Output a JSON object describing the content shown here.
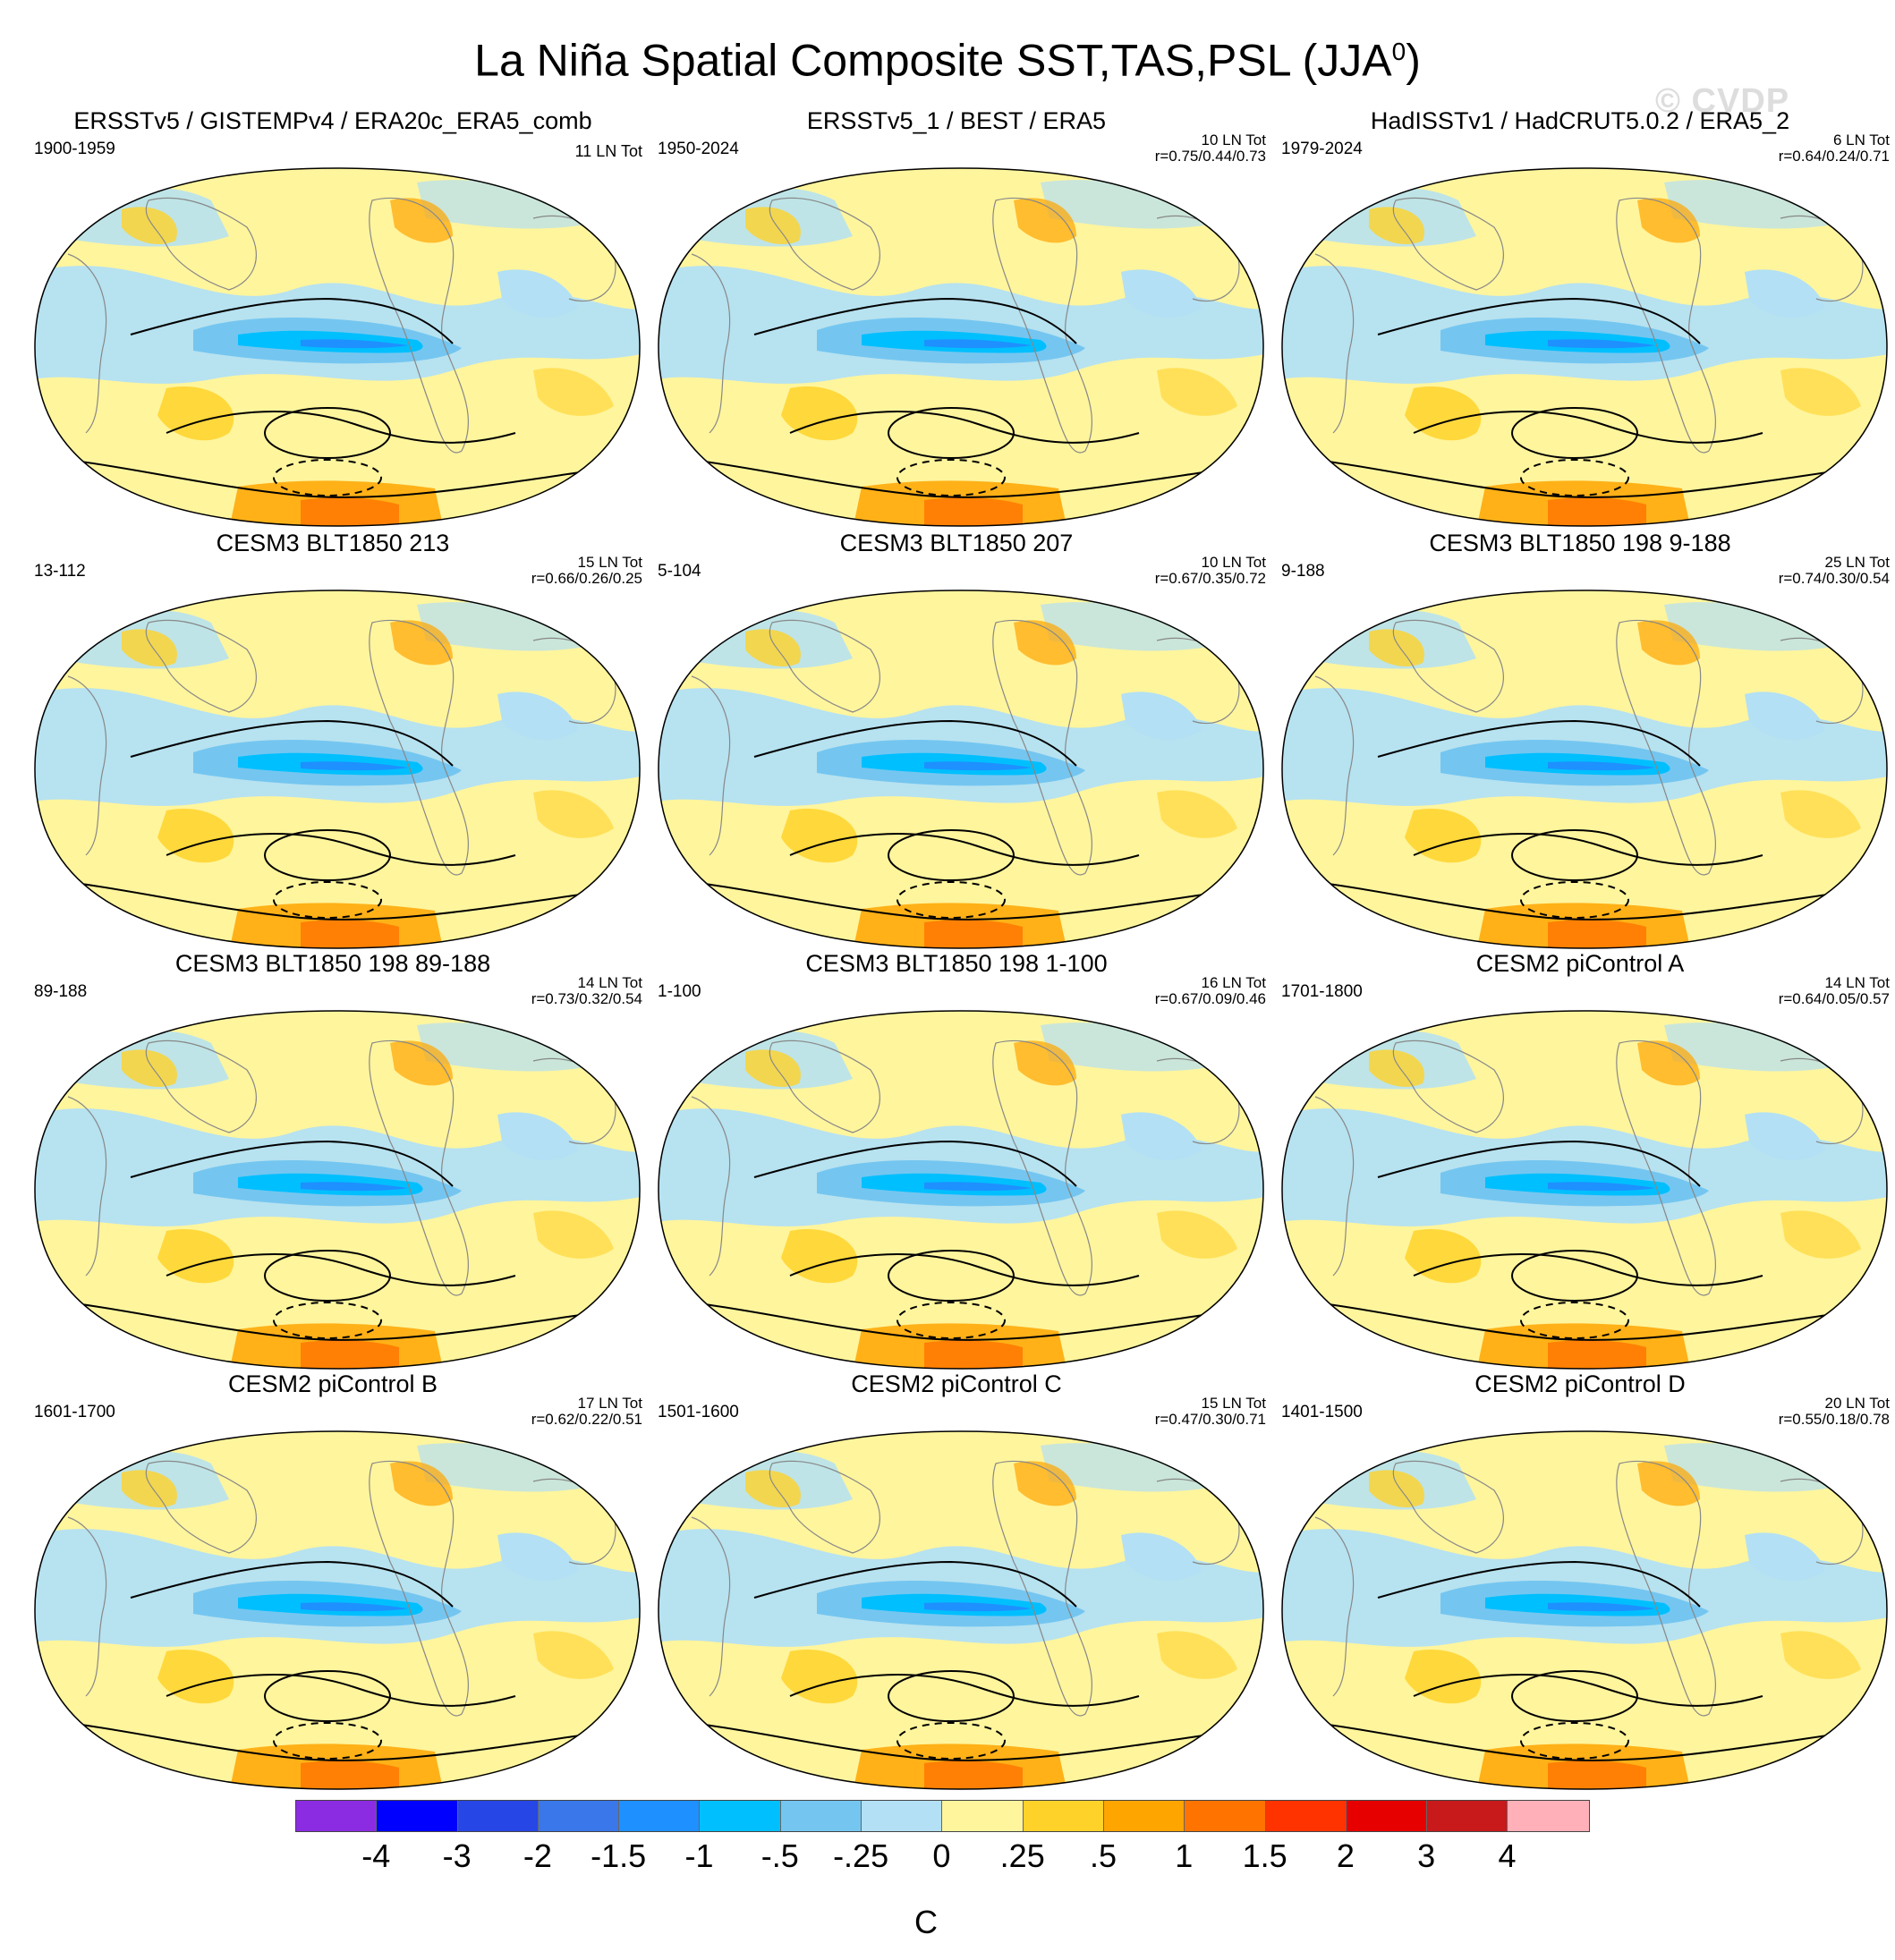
{
  "header": {
    "title": "La Niña Spatial Composite SST,TAS,PSL (JJA",
    "title_sup": "0",
    "title_close": ")",
    "watermark": "© CVDP"
  },
  "panels": [
    {
      "title": "ERSSTv5 / GISTEMPv4 / ERA20c_ERA5_comb",
      "period": "1900-1959",
      "events": "11 LN Tot",
      "corr": ""
    },
    {
      "title": "ERSSTv5_1 / BEST / ERA5",
      "period": "1950-2024",
      "events": "10 LN Tot",
      "corr": "r=0.75/0.44/0.73"
    },
    {
      "title": "HadISSTv1 / HadCRUT5.0.2 / ERA5_2",
      "period": "1979-2024",
      "events": "6 LN Tot",
      "corr": "r=0.64/0.24/0.71"
    },
    {
      "title": "CESM3 BLT1850 213",
      "period": "13-112",
      "events": "15 LN Tot",
      "corr": "r=0.66/0.26/0.25"
    },
    {
      "title": "CESM3 BLT1850 207",
      "period": "5-104",
      "events": "10 LN Tot",
      "corr": "r=0.67/0.35/0.72"
    },
    {
      "title": "CESM3 BLT1850 198 9-188",
      "period": "9-188",
      "events": "25 LN Tot",
      "corr": "r=0.74/0.30/0.54"
    },
    {
      "title": "CESM3 BLT1850 198 89-188",
      "period": "89-188",
      "events": "14 LN Tot",
      "corr": "r=0.73/0.32/0.54"
    },
    {
      "title": "CESM3 BLT1850 198 1-100",
      "period": "1-100",
      "events": "16 LN Tot",
      "corr": "r=0.67/0.09/0.46"
    },
    {
      "title": "CESM2 piControl A",
      "period": "1701-1800",
      "events": "14 LN Tot",
      "corr": "r=0.64/0.05/0.57"
    },
    {
      "title": "CESM2 piControl B",
      "period": "1601-1700",
      "events": "17 LN Tot",
      "corr": "r=0.62/0.22/0.51"
    },
    {
      "title": "CESM2 piControl C",
      "period": "1501-1600",
      "events": "15 LN Tot",
      "corr": "r=0.47/0.30/0.71"
    },
    {
      "title": "CESM2 piControl D",
      "period": "1401-1500",
      "events": "20 LN Tot",
      "corr": "r=0.55/0.18/0.78"
    }
  ],
  "colorbar": {
    "colors": [
      "#8b2be2",
      "#0000ff",
      "#2746e6",
      "#3a77ea",
      "#1e90ff",
      "#00bfff",
      "#74c6f0",
      "#b3e0f4",
      "#fff59d",
      "#ffd22a",
      "#ffa500",
      "#ff7400",
      "#ff3300",
      "#e60000",
      "#c8191b",
      "#ffb0b8"
    ],
    "labels": [
      "-4",
      "-3",
      "-2",
      "-1.5",
      "-1",
      "-.5",
      "-.25",
      "0",
      ".25",
      ".5",
      "1",
      "1.5",
      "2",
      "3",
      "4"
    ],
    "unit": "C"
  }
}
